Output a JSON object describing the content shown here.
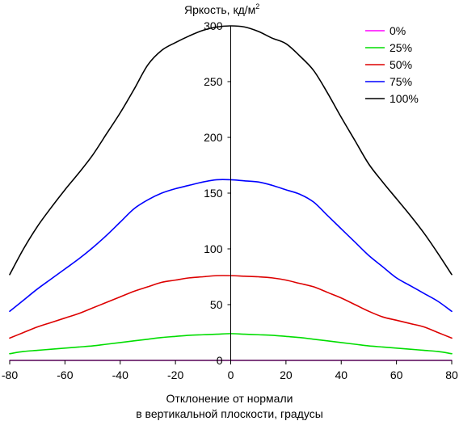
{
  "chart_data": {
    "type": "line",
    "title": "",
    "ylabel_main": "Яркость, кд/м",
    "ylabel_sup": "2",
    "xlabel_line1": "Отклонение от нормали",
    "xlabel_line2": "в вертикальной плоскости, градусы",
    "xlim": [
      -80,
      80
    ],
    "ylim": [
      0,
      300
    ],
    "xticks": [
      -80,
      -60,
      -40,
      -20,
      0,
      20,
      40,
      60,
      80
    ],
    "xtick_labels": [
      "-80",
      "-60",
      "-40",
      "-20",
      "0",
      "20",
      "40",
      "60",
      "80"
    ],
    "yticks": [
      0,
      50,
      100,
      150,
      200,
      250,
      300
    ],
    "ytick_labels": [
      "0",
      "50",
      "100",
      "150",
      "200",
      "250",
      "300"
    ],
    "grid": false,
    "legend_placement": "top-right",
    "x": [
      -80,
      -75,
      -70,
      -65,
      -60,
      -55,
      -50,
      -45,
      -40,
      -35,
      -30,
      -25,
      -20,
      -15,
      -10,
      -5,
      0,
      5,
      10,
      15,
      20,
      25,
      30,
      35,
      40,
      45,
      50,
      55,
      60,
      65,
      70,
      75,
      80
    ],
    "series": [
      {
        "name": "0%",
        "color": "#ff00ff",
        "values": [
          0,
          0,
          0,
          0,
          0,
          0,
          0,
          0,
          0,
          0,
          0,
          0,
          0,
          0,
          0,
          0,
          0,
          0,
          0,
          0,
          0,
          0,
          0,
          0,
          0,
          0,
          0,
          0,
          0,
          0,
          0,
          0,
          0
        ]
      },
      {
        "name": "25%",
        "color": "#00dd00",
        "values": [
          6,
          8,
          9,
          10,
          11,
          12,
          13,
          14.5,
          16,
          17.5,
          19,
          20.5,
          21.5,
          22.5,
          23,
          23.5,
          24,
          23.5,
          23,
          22.5,
          21.5,
          20.5,
          19,
          17.5,
          16,
          14.5,
          13,
          12,
          11,
          10,
          9,
          8,
          6
        ]
      },
      {
        "name": "50%",
        "color": "#dd0000",
        "values": [
          20,
          25,
          30,
          34,
          38,
          42,
          47,
          52,
          57,
          62,
          66,
          70,
          72,
          74,
          75,
          76,
          76,
          75.5,
          75,
          74,
          72,
          69,
          66,
          61,
          56,
          50,
          44,
          39,
          36,
          33,
          30,
          25,
          20
        ]
      },
      {
        "name": "75%",
        "color": "#0000ff",
        "values": [
          44,
          54,
          64,
          73,
          82,
          91,
          101,
          112,
          124,
          136,
          144,
          150,
          154,
          157,
          160,
          162,
          162,
          161,
          160,
          157,
          153,
          149,
          142,
          130,
          118,
          106,
          94,
          84,
          74,
          67,
          60,
          53,
          44
        ]
      },
      {
        "name": "100%",
        "color": "#000000",
        "values": [
          77,
          100,
          120,
          137,
          153,
          168,
          184,
          203,
          222,
          243,
          265,
          278,
          285,
          291,
          296,
          299,
          300,
          299,
          295,
          289,
          284,
          273,
          260,
          240,
          218,
          197,
          176,
          160,
          145,
          130,
          114,
          96,
          77
        ]
      }
    ]
  }
}
